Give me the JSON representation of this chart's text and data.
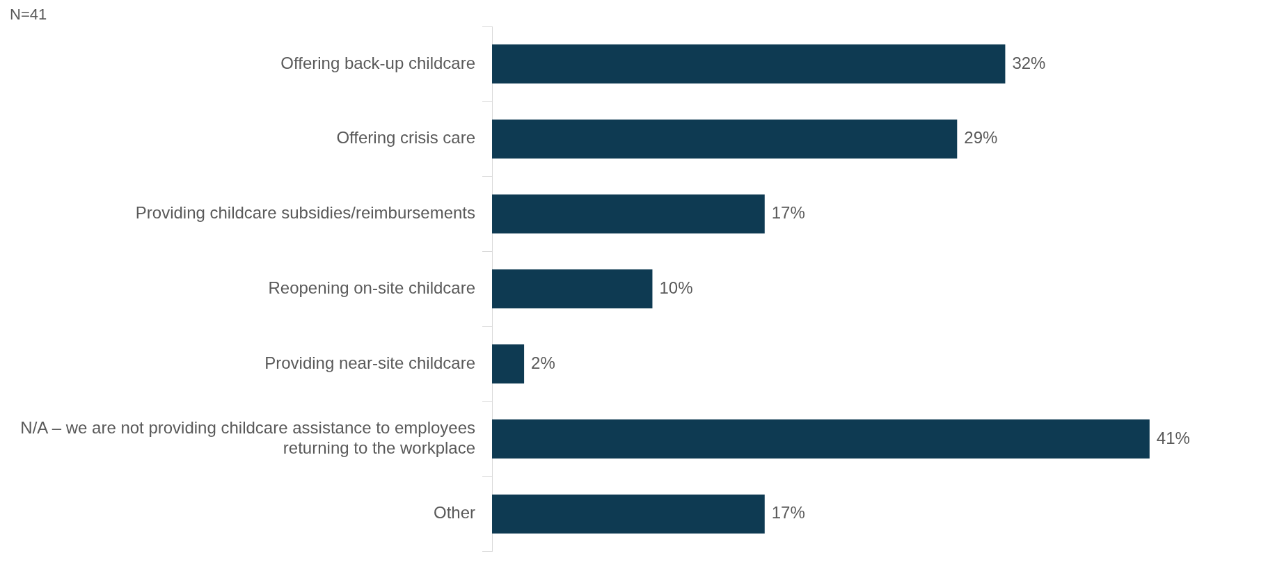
{
  "chart_data": {
    "type": "bar",
    "orientation": "horizontal",
    "categories": [
      "Offering back-up childcare",
      "Offering crisis care",
      "Providing childcare subsidies/reimbursements",
      "Reopening on-site childcare",
      "Providing near-site childcare",
      "N/A – we are not providing childcare assistance to employees returning to the workplace",
      "Other"
    ],
    "values": [
      32,
      29,
      17,
      10,
      2,
      41,
      17
    ],
    "value_labels": [
      "32%",
      "29%",
      "17%",
      "10%",
      "2%",
      "41%",
      "17%"
    ],
    "color": "#0e3a52",
    "annotations": [
      "N=41"
    ],
    "legend": false
  }
}
